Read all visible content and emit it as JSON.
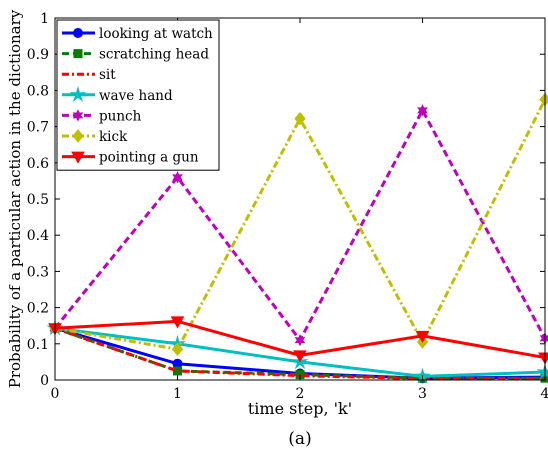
{
  "chart_data": {
    "type": "line",
    "title": "",
    "xlabel": "time step, 'k'",
    "ylabel": "Probability of a particular action in the dictionary",
    "caption": "(a)",
    "xlim": [
      0,
      4
    ],
    "ylim": [
      0,
      1
    ],
    "xticks": [
      "0",
      "1",
      "2",
      "3",
      "4"
    ],
    "yticks": [
      "0",
      "0.1",
      "0.2",
      "0.3",
      "0.4",
      "0.5",
      "0.6",
      "0.7",
      "0.8",
      "0.9",
      "1"
    ],
    "grid": false,
    "legend_position": "top-left",
    "x": [
      0,
      1,
      2,
      3,
      4
    ],
    "series": [
      {
        "name": "looking at watch",
        "values": [
          0.143,
          0.045,
          0.018,
          0.005,
          0.008
        ],
        "color": "#0000ff",
        "dash": "solid",
        "marker": "circle"
      },
      {
        "name": "scratching head",
        "values": [
          0.143,
          0.025,
          0.015,
          0.005,
          0.005
        ],
        "color": "#008000",
        "dash": "dashed",
        "marker": "square"
      },
      {
        "name": "sit",
        "values": [
          0.143,
          0.025,
          0.012,
          0.004,
          0.004
        ],
        "color": "#ff0000",
        "dash": "dashdot",
        "marker": "none"
      },
      {
        "name": "wave hand",
        "values": [
          0.143,
          0.1,
          0.05,
          0.01,
          0.022
        ],
        "color": "#00bfbf",
        "dash": "solid",
        "marker": "star"
      },
      {
        "name": "punch",
        "values": [
          0.143,
          0.56,
          0.11,
          0.745,
          0.115
        ],
        "color": "#bf00bf",
        "dash": "dashed",
        "marker": "hexagram"
      },
      {
        "name": "kick",
        "values": [
          0.143,
          0.085,
          0.722,
          0.105,
          0.775
        ],
        "color": "#bfbf00",
        "dash": "dashdot",
        "marker": "diamond"
      },
      {
        "name": "pointing a gun",
        "values": [
          0.143,
          0.162,
          0.068,
          0.122,
          0.062
        ],
        "color": "#ff0000",
        "dash": "solid",
        "marker": "triangle-down"
      }
    ]
  }
}
